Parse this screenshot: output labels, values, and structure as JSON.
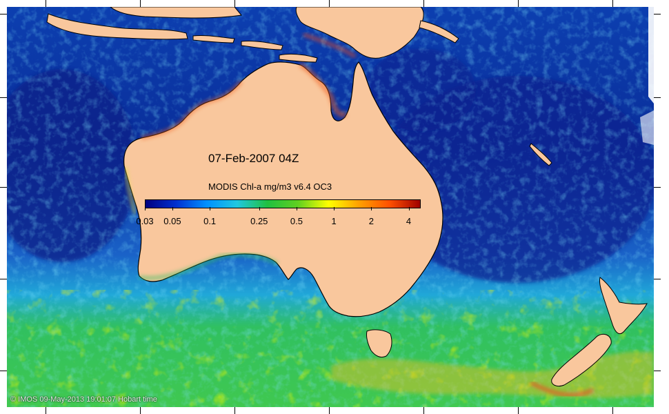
{
  "title": "07-Feb-2007 04Z",
  "legend": {
    "title": "MODIS Chl-a mg/m3 v6.4 OC3",
    "ticks": [
      "0.03",
      "0.05",
      "0.1",
      "0.25",
      "0.5",
      "1",
      "2",
      "4"
    ],
    "tick_values": [
      0.03,
      0.05,
      0.1,
      0.25,
      0.5,
      1,
      2,
      4
    ],
    "range": [
      0.03,
      5
    ],
    "scale": "log",
    "colors": [
      "#000080",
      "#0030d0",
      "#0090ff",
      "#20c8e0",
      "#20c040",
      "#60d020",
      "#ffff00",
      "#ffa000",
      "#ff5000",
      "#a00000"
    ]
  },
  "credit": "© IMOS 09-May-2013 19:01:07 Hobart time",
  "colors": {
    "land": "#f9c79d",
    "ocean_low": "#001e8c",
    "ocean_mid": "#1e78d2",
    "ocean_cyan": "#20c8e0",
    "ocean_green": "#30c040",
    "ocean_yellow": "#e0f000",
    "ocean_high": "#f05020"
  },
  "regions": [
    "Australia",
    "Tasmania",
    "New Zealand North Island",
    "New Zealand South Island",
    "New Guinea",
    "Indonesia"
  ]
}
